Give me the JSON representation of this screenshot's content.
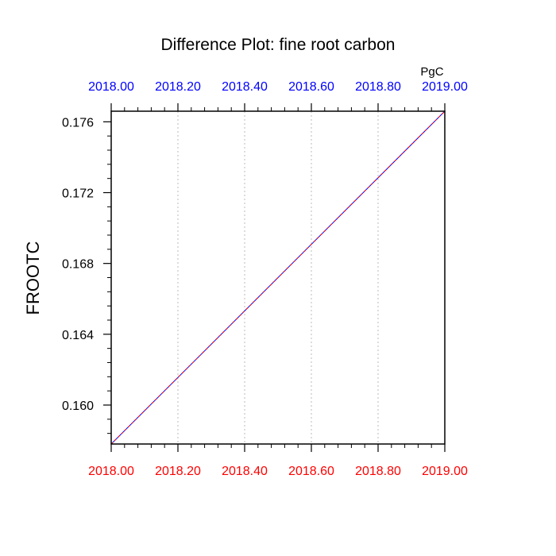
{
  "chart_data": {
    "type": "line",
    "title": "Difference Plot: fine root carbon",
    "units": "PgC",
    "ylabel": "FROOTC",
    "xlabel": "",
    "xlim": [
      2018.0,
      2019.0
    ],
    "ylim": [
      0.1578,
      0.1766
    ],
    "x_ticks": [
      2018.0,
      2018.2,
      2018.4,
      2018.6,
      2018.8,
      2019.0
    ],
    "x_tick_labels": [
      "2018.00",
      "2018.20",
      "2018.40",
      "2018.60",
      "2018.80",
      "2019.00"
    ],
    "y_ticks": [
      0.16,
      0.164,
      0.168,
      0.172,
      0.176
    ],
    "y_tick_labels": [
      "0.160",
      "0.164",
      "0.168",
      "0.172",
      "0.176"
    ],
    "y_minor_step": 0.0008,
    "grid": "vertical dotted at major x ticks",
    "bottom_axis_color": "#ff0000",
    "top_axis_color": "#0000ff",
    "series": [
      {
        "color": "#0000ff",
        "style": "solid",
        "x": [
          2018.0,
          2019.0
        ],
        "y": [
          0.1578,
          0.1766
        ]
      },
      {
        "color": "#ff0000",
        "style": "dashed",
        "x": [
          2018.0,
          2019.0
        ],
        "y": [
          0.1578,
          0.1766
        ]
      }
    ]
  }
}
